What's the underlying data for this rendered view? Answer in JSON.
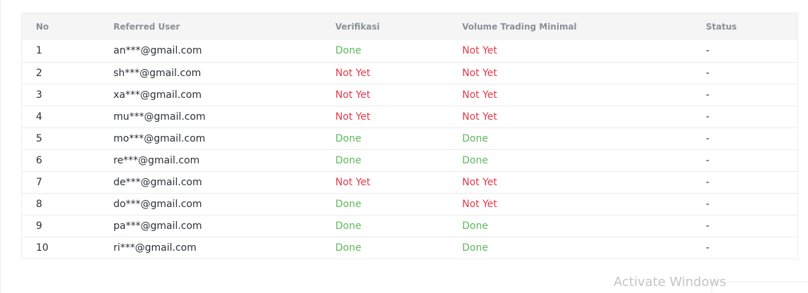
{
  "table": {
    "headers": {
      "no": "No",
      "user": "Referred User",
      "verification": "Verifikasi",
      "volume": "Volume Trading Minimal",
      "status": "Status"
    },
    "rows": [
      {
        "no": "1",
        "user": "an***@gmail.com",
        "verification": "Done",
        "volume": "Not Yet",
        "status": "-"
      },
      {
        "no": "2",
        "user": "sh***@gmail.com",
        "verification": "Not Yet",
        "volume": "Not Yet",
        "status": "-"
      },
      {
        "no": "3",
        "user": "xa***@gmail.com",
        "verification": "Not Yet",
        "volume": "Not Yet",
        "status": "-"
      },
      {
        "no": "4",
        "user": "mu***@gmail.com",
        "verification": "Not Yet",
        "volume": "Not Yet",
        "status": "-"
      },
      {
        "no": "5",
        "user": "mo***@gmail.com",
        "verification": "Done",
        "volume": "Done",
        "status": "-"
      },
      {
        "no": "6",
        "user": "re***@gmail.com",
        "verification": "Done",
        "volume": "Done",
        "status": "-"
      },
      {
        "no": "7",
        "user": "de***@gmail.com",
        "verification": "Not Yet",
        "volume": "Not Yet",
        "status": "-"
      },
      {
        "no": "8",
        "user": "do***@gmail.com",
        "verification": "Done",
        "volume": "Not Yet",
        "status": "-"
      },
      {
        "no": "9",
        "user": "pa***@gmail.com",
        "verification": "Done",
        "volume": "Done",
        "status": "-"
      },
      {
        "no": "10",
        "user": "ri***@gmail.com",
        "verification": "Done",
        "volume": "Done",
        "status": "-"
      }
    ]
  },
  "colors": {
    "done": "#5cb85c",
    "not_yet": "#e03a4a",
    "header_text": "#8a8f99",
    "header_bg": "#f5f5f5"
  },
  "watermark": {
    "text": "Activate Windows"
  }
}
